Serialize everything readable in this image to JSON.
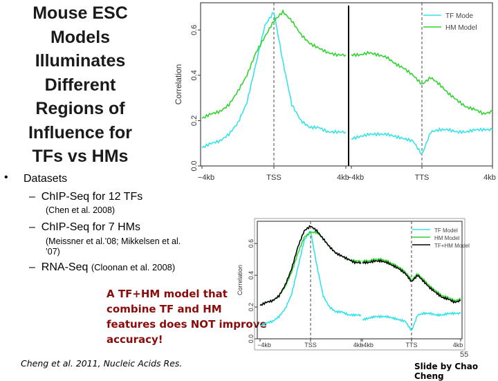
{
  "title_lines": [
    "Mouse ESC",
    "Models",
    "Illuminates",
    "Different",
    "Regions of",
    "Influence for",
    "TFs vs HMs"
  ],
  "bullets": {
    "symbol": "•",
    "main": "Datasets",
    "dash": "–",
    "items": [
      {
        "text": "ChIP-Seq for 12 TFs",
        "citation": "(Chen et al. 2008)"
      },
      {
        "text": "ChIP-Seq for 7 HMs",
        "citation_lines": [
          "(Meissner et al.’08; Mikkelsen et al.",
          "’07)"
        ]
      },
      {
        "text": "RNA-Seq",
        "citation": "(Cloonan et al. 2008)"
      }
    ]
  },
  "note_lines": [
    "A TF+HM model that",
    "combine TF and HM",
    "features does NOT improve",
    "accuracy!"
  ],
  "citation": "Cheng et al. 2011, Nucleic Acids Res.",
  "page_number": "55",
  "credit": "Slide by Chao Cheng",
  "colors": {
    "tf": "#33e3e8",
    "hm": "#2fd42f",
    "tfhm": "#000000",
    "note": "#8b0a0a"
  },
  "chart_data": [
    {
      "type": "line",
      "ylabel": "Correlation",
      "ylim": [
        0.0,
        0.72
      ],
      "yticks": [
        "0.0",
        "0.2",
        "0.4",
        "0.6"
      ],
      "xticks": [
        "−4kb",
        "TSS",
        "4kb",
        "−4kb",
        "TTS",
        "4kb"
      ],
      "legend": [
        "TF Mode",
        "HM Model"
      ],
      "legend_position": "top-right",
      "panels": [
        {
          "x": [
            -4,
            -3.5,
            -3,
            -2.5,
            -2,
            -1.5,
            -1,
            -0.5,
            0,
            0.5,
            1,
            1.5,
            2,
            2.5,
            3,
            3.5,
            4
          ],
          "series": [
            {
              "name": "TF Mode",
              "values": [
                0.08,
                0.1,
                0.11,
                0.14,
                0.19,
                0.28,
                0.45,
                0.62,
                0.68,
                0.46,
                0.27,
                0.2,
                0.17,
                0.17,
                0.15,
                0.15,
                0.15
              ]
            },
            {
              "name": "HM Model",
              "values": [
                0.21,
                0.23,
                0.24,
                0.27,
                0.33,
                0.4,
                0.5,
                0.57,
                0.64,
                0.68,
                0.64,
                0.58,
                0.54,
                0.52,
                0.5,
                0.49,
                0.49
              ]
            }
          ]
        },
        {
          "x": [
            -4,
            -3.5,
            -3,
            -2.5,
            -2,
            -1.5,
            -1,
            -0.5,
            0,
            0.5,
            1,
            1.5,
            2,
            2.5,
            3,
            3.5,
            4
          ],
          "series": [
            {
              "name": "TF Mode",
              "values": [
                0.12,
                0.13,
                0.14,
                0.14,
                0.14,
                0.13,
                0.12,
                0.11,
                0.05,
                0.15,
                0.16,
                0.16,
                0.15,
                0.15,
                0.16,
                0.16,
                0.16
              ]
            },
            {
              "name": "HM Model",
              "values": [
                0.49,
                0.49,
                0.5,
                0.49,
                0.48,
                0.45,
                0.43,
                0.4,
                0.36,
                0.39,
                0.36,
                0.32,
                0.29,
                0.26,
                0.25,
                0.23,
                0.24
              ]
            }
          ]
        }
      ]
    },
    {
      "type": "line",
      "ylabel": "Correlation",
      "ylim": [
        0.0,
        0.74
      ],
      "yticks": [
        "0.0",
        "0.2",
        "0.4",
        "0.6"
      ],
      "xticks": [
        "−4kb",
        "TSS",
        "4kb",
        "−4kb",
        "TTS",
        "4kb"
      ],
      "legend": [
        "TF Model",
        "HM Model",
        "TF+HM Model"
      ],
      "legend_position": "top-right",
      "panels": [
        {
          "x": [
            -4,
            -3.5,
            -3,
            -2.5,
            -2,
            -1.5,
            -1,
            -0.5,
            0,
            0.5,
            1,
            1.5,
            2,
            2.5,
            3,
            3.5,
            4
          ],
          "series": [
            {
              "name": "TF Model",
              "values": [
                0.08,
                0.1,
                0.11,
                0.14,
                0.19,
                0.28,
                0.45,
                0.62,
                0.68,
                0.46,
                0.27,
                0.2,
                0.17,
                0.17,
                0.15,
                0.15,
                0.15
              ]
            },
            {
              "name": "HM Model",
              "values": [
                0.21,
                0.23,
                0.24,
                0.27,
                0.33,
                0.42,
                0.54,
                0.64,
                0.67,
                0.67,
                0.63,
                0.58,
                0.54,
                0.52,
                0.5,
                0.49,
                0.49
              ]
            },
            {
              "name": "TF+HM Model",
              "values": [
                0.21,
                0.23,
                0.24,
                0.27,
                0.34,
                0.44,
                0.58,
                0.68,
                0.71,
                0.68,
                0.63,
                0.58,
                0.54,
                0.52,
                0.5,
                0.48,
                0.48
              ]
            }
          ]
        },
        {
          "x": [
            -4,
            -3.5,
            -3,
            -2.5,
            -2,
            -1.5,
            -1,
            -0.5,
            0,
            0.5,
            1,
            1.5,
            2,
            2.5,
            3,
            3.5,
            4
          ],
          "series": [
            {
              "name": "TF Model",
              "values": [
                0.12,
                0.13,
                0.14,
                0.14,
                0.14,
                0.13,
                0.12,
                0.11,
                0.05,
                0.15,
                0.16,
                0.16,
                0.15,
                0.15,
                0.16,
                0.16,
                0.16
              ]
            },
            {
              "name": "HM Model",
              "values": [
                0.49,
                0.49,
                0.5,
                0.5,
                0.49,
                0.47,
                0.45,
                0.42,
                0.37,
                0.41,
                0.37,
                0.33,
                0.3,
                0.27,
                0.26,
                0.24,
                0.25
              ]
            },
            {
              "name": "TF+HM Model",
              "values": [
                0.48,
                0.48,
                0.49,
                0.49,
                0.48,
                0.46,
                0.44,
                0.41,
                0.36,
                0.4,
                0.36,
                0.32,
                0.29,
                0.26,
                0.25,
                0.23,
                0.24
              ]
            }
          ]
        }
      ]
    }
  ]
}
